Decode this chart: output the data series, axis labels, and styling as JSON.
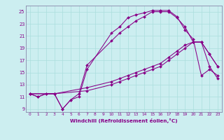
{
  "xlabel": "Windchill (Refroidissement éolien,°C)",
  "bg_color": "#cceef0",
  "line_color": "#880088",
  "grid_color": "#aadddd",
  "spine_color": "#8888aa",
  "xlim": [
    -0.5,
    23.5
  ],
  "ylim": [
    8.5,
    26.0
  ],
  "yticks": [
    9,
    11,
    13,
    15,
    17,
    19,
    21,
    23,
    25
  ],
  "xticks": [
    0,
    1,
    2,
    3,
    4,
    5,
    6,
    7,
    8,
    9,
    10,
    11,
    12,
    13,
    14,
    15,
    16,
    17,
    18,
    19,
    20,
    21,
    22,
    23
  ],
  "line1_x": [
    0,
    1,
    2,
    3,
    4,
    5,
    6,
    7,
    10,
    11,
    12,
    13,
    14,
    15,
    16,
    17,
    18,
    19,
    20,
    21,
    22,
    23
  ],
  "line1_y": [
    11.5,
    11.0,
    11.5,
    11.5,
    9.0,
    10.5,
    11.0,
    15.5,
    21.5,
    22.5,
    24.0,
    24.5,
    24.8,
    25.2,
    25.2,
    25.2,
    24.2,
    22.0,
    20.5,
    14.5,
    15.5,
    14.5
  ],
  "line2_x": [
    0,
    1,
    2,
    3,
    4,
    5,
    6,
    7,
    10,
    11,
    12,
    13,
    14,
    15,
    16,
    17,
    18,
    19,
    20,
    21,
    22,
    23
  ],
  "line2_y": [
    11.5,
    11.0,
    11.5,
    11.5,
    9.0,
    10.5,
    11.5,
    16.2,
    20.2,
    21.5,
    22.5,
    23.5,
    24.2,
    25.0,
    25.0,
    25.0,
    24.0,
    22.5,
    20.0,
    20.0,
    16.0,
    14.0
  ],
  "line3_x": [
    0,
    3,
    7,
    10,
    11,
    12,
    13,
    14,
    15,
    16,
    17,
    18,
    19,
    20,
    21,
    22,
    23
  ],
  "line3_y": [
    11.5,
    11.5,
    12.0,
    13.0,
    13.5,
    14.0,
    14.5,
    15.0,
    15.5,
    16.0,
    17.0,
    18.0,
    19.0,
    20.0,
    20.0,
    18.0,
    16.0
  ],
  "line4_x": [
    0,
    3,
    7,
    10,
    11,
    12,
    13,
    14,
    15,
    16,
    17,
    18,
    19,
    20,
    21,
    22,
    23
  ],
  "line4_y": [
    11.5,
    11.5,
    12.5,
    13.5,
    14.0,
    14.5,
    15.0,
    15.5,
    16.0,
    16.5,
    17.5,
    18.5,
    19.5,
    20.0,
    20.0,
    18.0,
    16.0
  ]
}
